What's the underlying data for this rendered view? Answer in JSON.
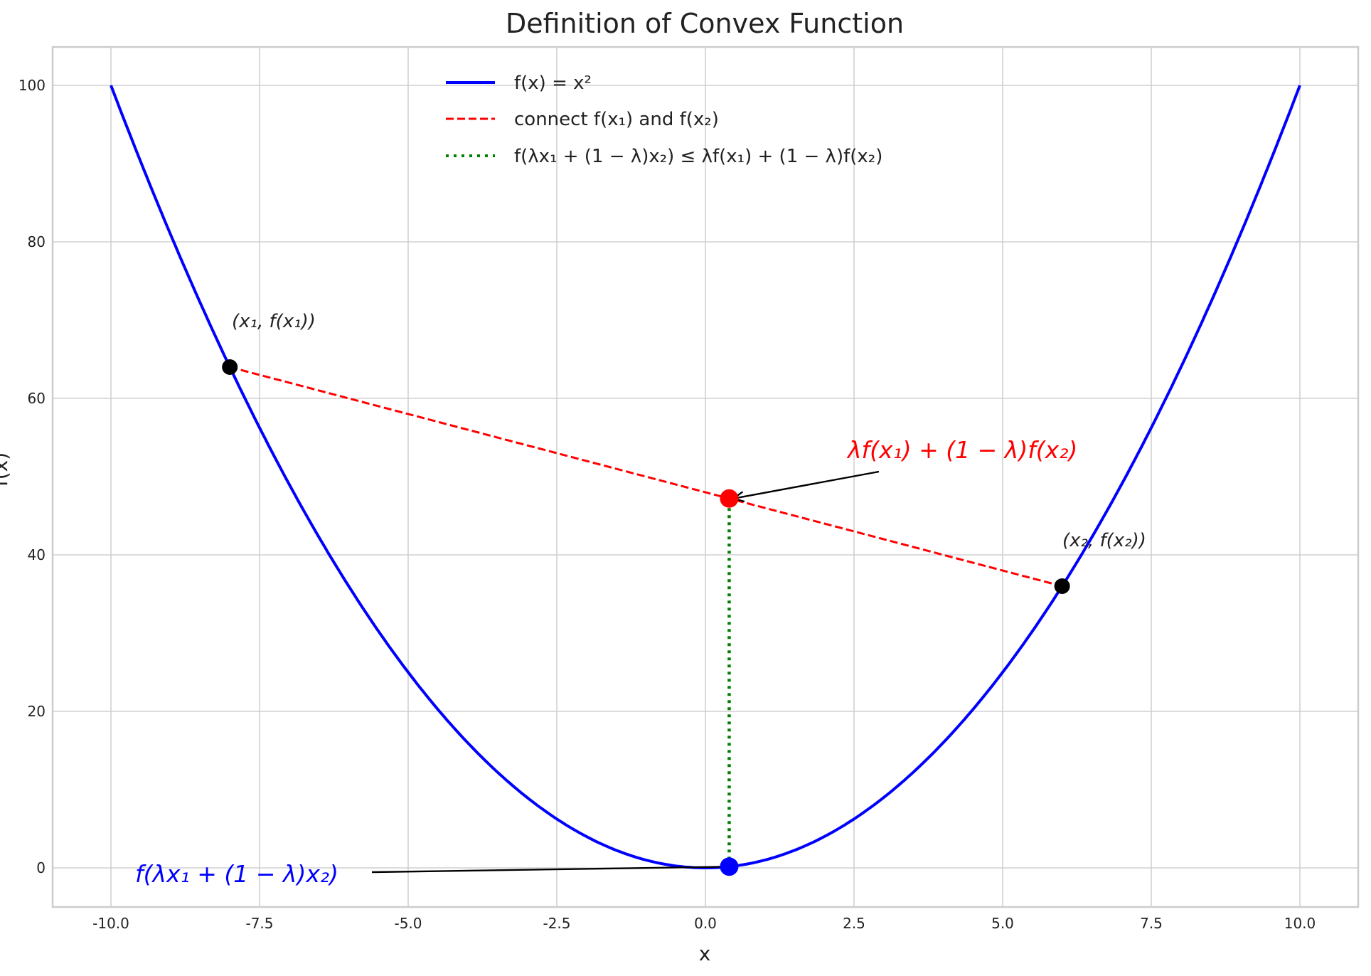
{
  "chart_data": {
    "type": "line",
    "title": "Definition of Convex Function",
    "xlabel": "x",
    "ylabel": "f(x)",
    "xlim": [
      -11,
      11
    ],
    "ylim": [
      -5,
      105
    ],
    "xticks": [
      -10,
      -7.5,
      -5,
      -2.5,
      0,
      2.5,
      5,
      7.5,
      10
    ],
    "xtick_labels": [
      "-10.0",
      "-7.5",
      "-5.0",
      "-2.5",
      "0.0",
      "2.5",
      "5.0",
      "7.5",
      "10.0"
    ],
    "yticks": [
      0,
      20,
      40,
      60,
      80,
      100
    ],
    "ytick_labels": [
      "0",
      "20",
      "40",
      "60",
      "80",
      "100"
    ],
    "grid": true,
    "legend_position": "top-center",
    "series": [
      {
        "name": "f(x) = x²",
        "style": "solid",
        "color": "#0000ff",
        "function": "x^2",
        "x_range": [
          -10,
          10
        ]
      },
      {
        "name": "connect f(x₁) and f(x₂)",
        "style": "dashed",
        "color": "#ff0000",
        "x": [
          -8,
          6
        ],
        "y": [
          64,
          36
        ]
      },
      {
        "name": "f(λx₁ + (1 − λ)x₂) ≤ λf(x₁) + (1 − λ)f(x₂)",
        "style": "dotted",
        "color": "#008000",
        "x": [
          0.4,
          0.4
        ],
        "y": [
          0.16,
          47.2
        ]
      }
    ],
    "points": [
      {
        "x": -8,
        "y": 64,
        "color": "#000000",
        "label": "(x₁, f(x₁))"
      },
      {
        "x": 6,
        "y": 36,
        "color": "#000000",
        "label": "(x₂, f(x₂))"
      },
      {
        "x": 0.4,
        "y": 47.2,
        "color": "#ff0000"
      },
      {
        "x": 0.4,
        "y": 0.16,
        "color": "#0000ff"
      }
    ],
    "annotations": [
      {
        "text": "λf(x₁) + (1 − λ)f(x₂)",
        "color": "#ff0000",
        "arrow_to": [
          0.4,
          47.2
        ]
      },
      {
        "text": "f(λx₁ + (1 − λ)x₂)",
        "color": "#0000ff",
        "arrow_to": [
          0.4,
          0.16
        ]
      }
    ]
  }
}
